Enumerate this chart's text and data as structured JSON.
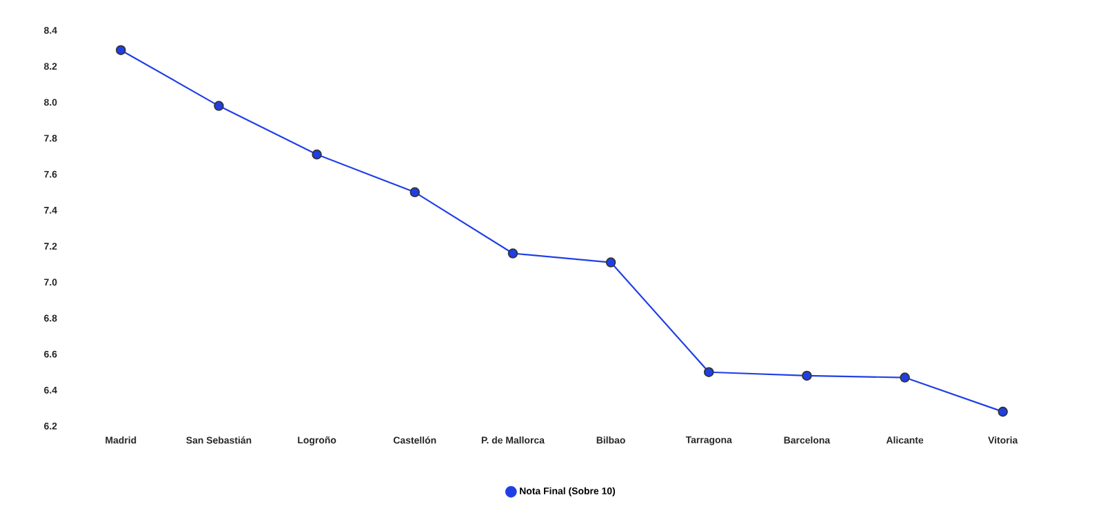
{
  "chart_data": {
    "type": "line",
    "categories": [
      "Madrid",
      "San Sebastián",
      "Logroño",
      "Castellón",
      "P. de Mallorca",
      "Bilbao",
      "Tarragona",
      "Barcelona",
      "Alicante",
      "Vitoria"
    ],
    "series": [
      {
        "name": "Nota Final (Sobre 10)",
        "color": "#1f3fe6",
        "values": [
          8.29,
          7.98,
          7.71,
          7.5,
          7.16,
          7.11,
          6.5,
          6.48,
          6.47,
          6.28
        ]
      }
    ],
    "ylim": [
      6.2,
      8.4
    ],
    "yticks": [
      6.2,
      6.4,
      6.6,
      6.8,
      {
        "value": 7,
        "label": "7.0"
      },
      7.2,
      7.4,
      7.6,
      7.8,
      {
        "value": 8,
        "label": "8.0"
      },
      8.2,
      8.4
    ],
    "grid": false,
    "legend": "bottom",
    "marker": "circle",
    "line_style": "solid"
  }
}
